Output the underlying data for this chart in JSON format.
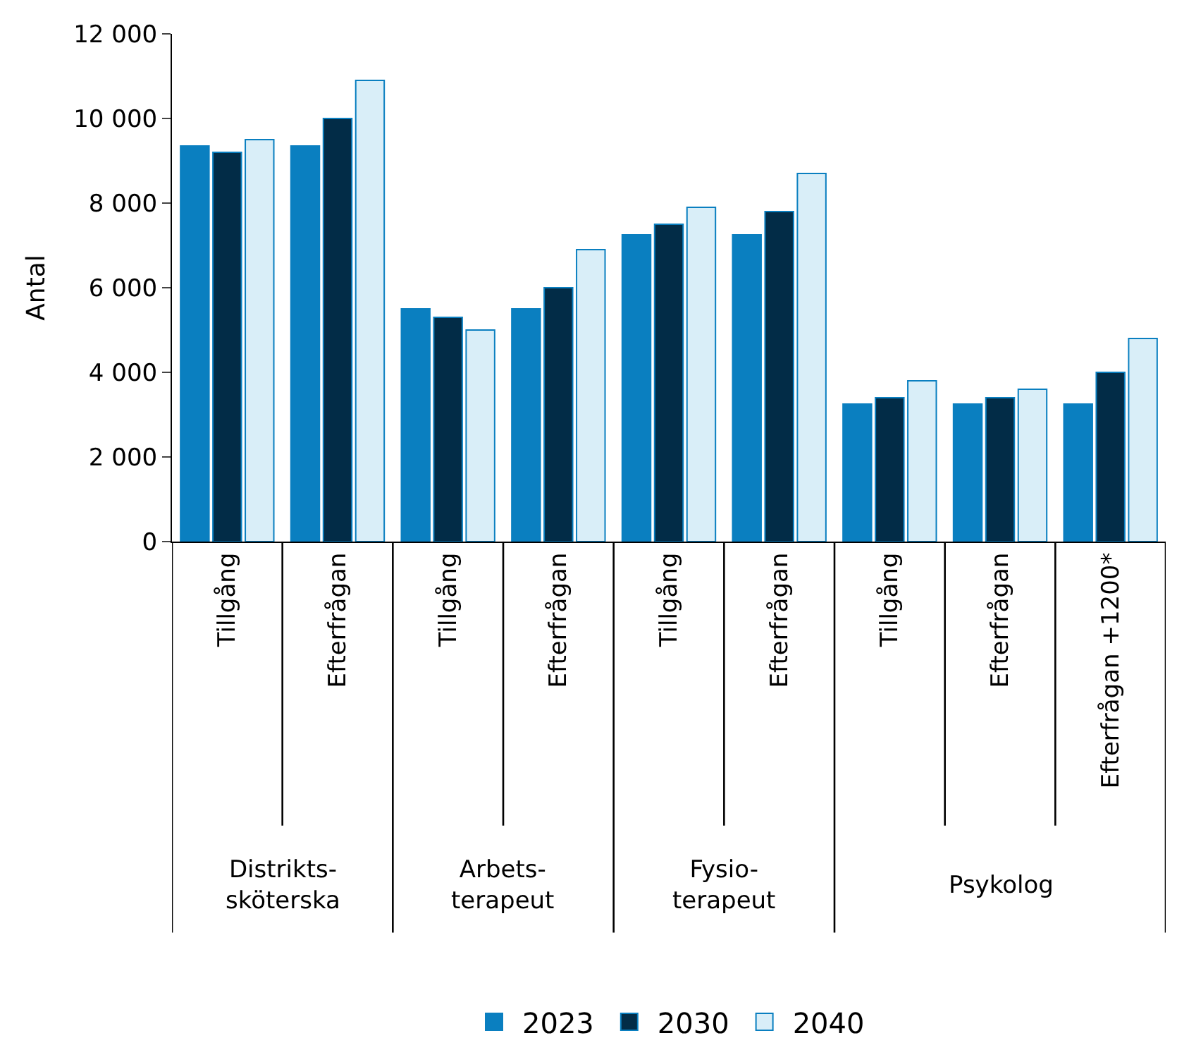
{
  "chart_data": {
    "type": "bar",
    "ylabel": "Antal",
    "categories": [
      "Tillgång",
      "Efterfrågan",
      "Tillgång",
      "Efterfrågan",
      "Tillgång",
      "Efterfrågan",
      "Tillgång",
      "Efterfrågan",
      "Efterfrågan +1200*"
    ],
    "annotations": [
      "Distrikts-\nsköterska",
      "Arbets-\nterapeut",
      "Fysio-\nterapeut",
      "Psykolog"
    ],
    "series": [
      {
        "name": "2023",
        "color": "#0a7fc0",
        "values": [
          9350,
          9350,
          5500,
          5500,
          7250,
          7250,
          3250,
          3250,
          3250
        ]
      },
      {
        "name": "2030",
        "color": "#022c47",
        "values": [
          9200,
          10000,
          5300,
          6000,
          7500,
          7800,
          3400,
          3400,
          4000
        ]
      },
      {
        "name": "2040",
        "color": "#d9eef8",
        "values": [
          9500,
          10900,
          5000,
          6900,
          7900,
          8700,
          3800,
          3600,
          4800
        ]
      }
    ],
    "ylim": [
      0,
      12000
    ],
    "yticks": [
      {
        "value": 0,
        "label": "0"
      },
      {
        "value": 2000,
        "label": "2 000"
      },
      {
        "value": 4000,
        "label": "4 000"
      },
      {
        "value": 6000,
        "label": "6 000"
      },
      {
        "value": 8000,
        "label": "8 000"
      },
      {
        "value": 10000,
        "label": "10 000"
      },
      {
        "value": 12000,
        "label": "12 000"
      }
    ],
    "legend": "bottom"
  }
}
